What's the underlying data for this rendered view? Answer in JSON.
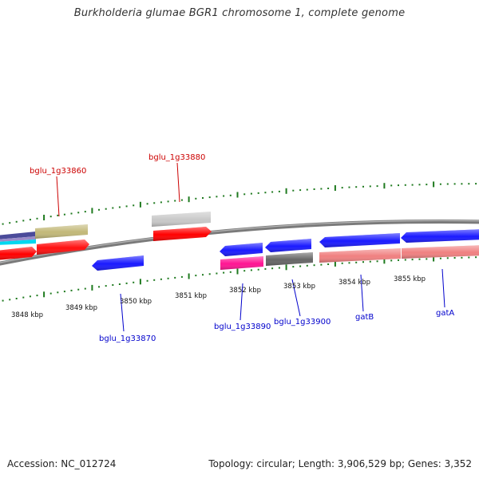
{
  "title": "Burkholderia glumae BGR1 chromosome 1, complete genome",
  "footer": {
    "accession": "Accession: NC_012724",
    "topology": "Topology: circular; Length: 3,906,529 bp; Genes: 3,352"
  },
  "scale_labels": [
    "3848 kbp",
    "3849 kbp",
    "3850 kbp",
    "3851 kbp",
    "3852 kbp",
    "3853 kbp",
    "3854 kbp",
    "3855 kbp"
  ],
  "gene_labels": [
    "bglu_1g33860",
    "bglu_1g33880",
    "bglu_1g33870",
    "bglu_1g33890",
    "bglu_1g33900",
    "gatB",
    "gatA"
  ],
  "colors": {
    "forward_label": "#cc0000",
    "reverse_label": "#0000cc",
    "tick": "#1f7a1f",
    "backbone": "#808080",
    "red": "#ff0000",
    "blue": "#1a1aff",
    "salmon": "#f08080",
    "khaki": "#c2b878",
    "magenta": "#ff1493",
    "dark_gray": "#666666",
    "light_gray": "#c8c8c8",
    "cyan": "#00e0ff",
    "purple": "#6a5acd"
  }
}
